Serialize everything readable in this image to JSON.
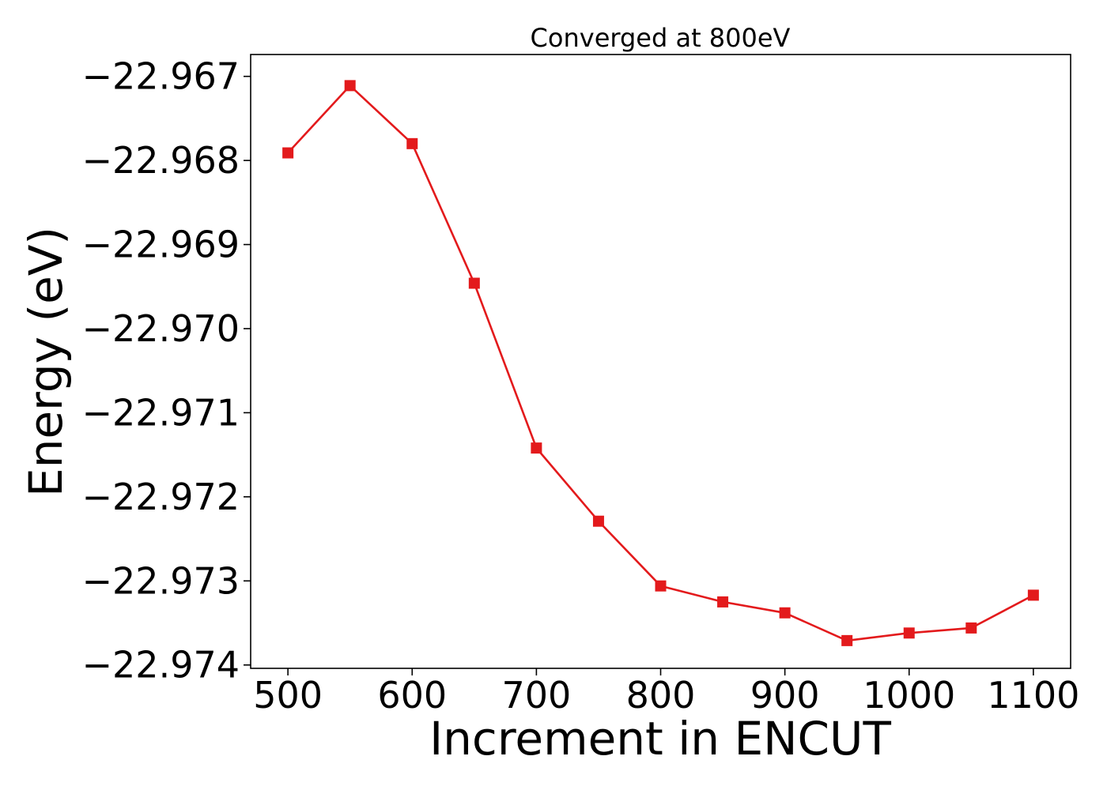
{
  "chart_data": {
    "type": "line",
    "title": "Converged at 800eV",
    "xlabel": "Increment in ENCUT",
    "ylabel": "Energy (eV)",
    "x": [
      500,
      550,
      600,
      650,
      700,
      750,
      800,
      850,
      900,
      950,
      1000,
      1050,
      1100
    ],
    "series": [
      {
        "color": "#e31a1c",
        "marker": "square",
        "values": [
          -22.96791,
          -22.96711,
          -22.9678,
          -22.96946,
          -22.97142,
          -22.97229,
          -22.97306,
          -22.97325,
          -22.97338,
          -22.97371,
          -22.97362,
          -22.97356,
          -22.97317
        ]
      }
    ],
    "xticks": [
      500,
      600,
      700,
      800,
      900,
      1000,
      1100
    ],
    "xtick_labels": [
      "500",
      "600",
      "700",
      "800",
      "900",
      "1000",
      "1100"
    ],
    "yticks": [
      -22.967,
      -22.968,
      -22.969,
      -22.97,
      -22.971,
      -22.972,
      -22.973,
      -22.974
    ],
    "ytick_labels": [
      "−22.967",
      "−22.968",
      "−22.969",
      "−22.970",
      "−22.971",
      "−22.972",
      "−22.973",
      "−22.974"
    ],
    "xlim": [
      470,
      1130
    ],
    "ylim": [
      -22.97404,
      -22.96674
    ],
    "grid": false,
    "legend": "none"
  }
}
